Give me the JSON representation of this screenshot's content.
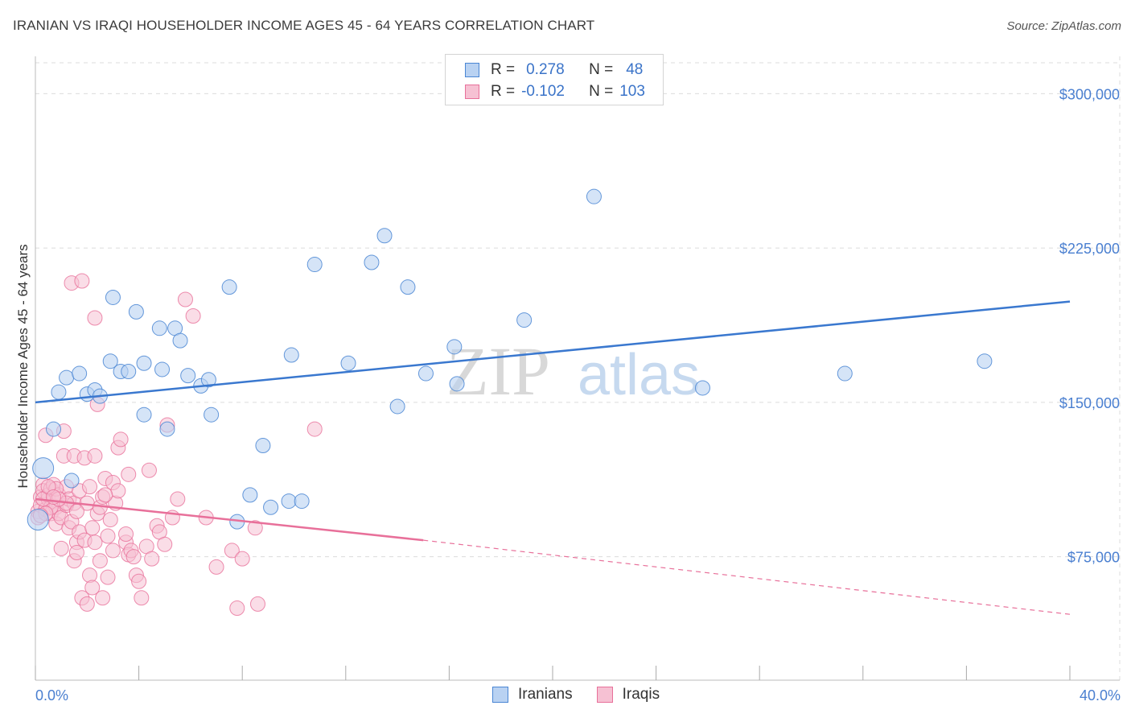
{
  "title": "IRANIAN VS IRAQI HOUSEHOLDER INCOME AGES 45 - 64 YEARS CORRELATION CHART",
  "source": "Source: ZipAtlas.com",
  "legend": {
    "rows": [
      {
        "r_label": "R =",
        "r_value": "0.278",
        "n_label": "N =",
        "n_value": "48"
      },
      {
        "r_label": "R =",
        "r_value": "-0.102",
        "n_label": "N =",
        "n_value": "103"
      }
    ]
  },
  "bottom_legend": [
    "Iranians",
    "Iraqis"
  ],
  "watermark": {
    "zip": "ZIP",
    "atlas": "atlas"
  },
  "colors": {
    "blue": "#4a86d4",
    "blue_fill": "#b9d2f2",
    "pink": "#e8709a",
    "pink_fill": "#f6c1d3",
    "label_blue": "#4a7fd0",
    "grid": "#dcdcdc"
  },
  "chart_data": {
    "type": "scatter",
    "title": "IRANIAN VS IRAQI HOUSEHOLDER INCOME AGES 45 - 64 YEARS CORRELATION CHART",
    "xlabel": "",
    "ylabel": "Householder Income Ages 45 - 64 years",
    "xlim": [
      0,
      40
    ],
    "ylim": [
      15000,
      315000
    ],
    "x_tick_labels": [
      "0.0%",
      "40.0%"
    ],
    "y_ticks": [
      75000,
      150000,
      225000,
      300000
    ],
    "y_tick_labels": [
      "$75,000",
      "$150,000",
      "$225,000",
      "$300,000"
    ],
    "series": [
      {
        "name": "Iranians",
        "color": "#4a86d4",
        "trend": {
          "x": [
            0,
            40
          ],
          "y": [
            150000,
            199000
          ]
        },
        "points": [
          [
            0.1,
            93000
          ],
          [
            0.3,
            118000
          ],
          [
            0.7,
            137000
          ],
          [
            0.9,
            155000
          ],
          [
            1.2,
            162000
          ],
          [
            1.4,
            112000
          ],
          [
            1.7,
            164000
          ],
          [
            2.0,
            154000
          ],
          [
            2.3,
            156000
          ],
          [
            2.5,
            153000
          ],
          [
            2.9,
            170000
          ],
          [
            3.0,
            201000
          ],
          [
            3.3,
            165000
          ],
          [
            3.6,
            165000
          ],
          [
            3.9,
            194000
          ],
          [
            4.2,
            169000
          ],
          [
            4.2,
            144000
          ],
          [
            4.8,
            186000
          ],
          [
            4.9,
            166000
          ],
          [
            5.1,
            137000
          ],
          [
            5.4,
            186000
          ],
          [
            5.6,
            180000
          ],
          [
            5.9,
            163000
          ],
          [
            6.4,
            158000
          ],
          [
            6.7,
            161000
          ],
          [
            6.8,
            144000
          ],
          [
            7.5,
            206000
          ],
          [
            7.8,
            92000
          ],
          [
            8.3,
            105000
          ],
          [
            8.8,
            129000
          ],
          [
            9.1,
            99000
          ],
          [
            9.9,
            173000
          ],
          [
            9.8,
            102000
          ],
          [
            10.3,
            102000
          ],
          [
            10.8,
            217000
          ],
          [
            12.1,
            169000
          ],
          [
            13.0,
            218000
          ],
          [
            13.5,
            231000
          ],
          [
            14.0,
            148000
          ],
          [
            14.4,
            206000
          ],
          [
            15.1,
            164000
          ],
          [
            16.2,
            177000
          ],
          [
            16.3,
            159000
          ],
          [
            18.9,
            190000
          ],
          [
            21.6,
            250000
          ],
          [
            25.8,
            157000
          ],
          [
            31.3,
            164000
          ],
          [
            36.7,
            170000
          ]
        ]
      },
      {
        "name": "Iraqis",
        "color": "#e8709a",
        "trend": {
          "x": [
            0,
            15
          ],
          "y": [
            103000,
            83000
          ],
          "x_dashed": [
            15,
            40
          ],
          "y_dashed": [
            83000,
            47000
          ]
        },
        "points": [
          [
            0.1,
            97000
          ],
          [
            0.1,
            94000
          ],
          [
            0.2,
            104000
          ],
          [
            0.2,
            100000
          ],
          [
            0.3,
            110000
          ],
          [
            0.3,
            107000
          ],
          [
            0.4,
            134000
          ],
          [
            0.4,
            98000
          ],
          [
            0.5,
            103000
          ],
          [
            0.5,
            105000
          ],
          [
            0.6,
            96000
          ],
          [
            0.6,
            108000
          ],
          [
            0.7,
            102000
          ],
          [
            0.7,
            110000
          ],
          [
            0.8,
            99000
          ],
          [
            0.8,
            91000
          ],
          [
            0.9,
            96000
          ],
          [
            0.9,
            105000
          ],
          [
            1.0,
            79000
          ],
          [
            1.0,
            94000
          ],
          [
            1.1,
            136000
          ],
          [
            1.1,
            124000
          ],
          [
            1.2,
            109000
          ],
          [
            1.2,
            100000
          ],
          [
            1.3,
            89000
          ],
          [
            1.3,
            103000
          ],
          [
            1.4,
            92000
          ],
          [
            1.5,
            124000
          ],
          [
            1.5,
            101000
          ],
          [
            1.5,
            73000
          ],
          [
            1.6,
            82000
          ],
          [
            1.6,
            77000
          ],
          [
            1.7,
            107000
          ],
          [
            1.7,
            87000
          ],
          [
            1.8,
            55000
          ],
          [
            1.9,
            83000
          ],
          [
            1.9,
            123000
          ],
          [
            2.0,
            52000
          ],
          [
            2.0,
            101000
          ],
          [
            2.1,
            109000
          ],
          [
            2.1,
            66000
          ],
          [
            2.2,
            60000
          ],
          [
            2.2,
            89000
          ],
          [
            2.3,
            82000
          ],
          [
            2.3,
            124000
          ],
          [
            2.4,
            149000
          ],
          [
            2.4,
            96000
          ],
          [
            2.5,
            99000
          ],
          [
            2.5,
            73000
          ],
          [
            2.6,
            55000
          ],
          [
            2.6,
            104000
          ],
          [
            2.7,
            113000
          ],
          [
            2.8,
            85000
          ],
          [
            2.8,
            65000
          ],
          [
            2.9,
            93000
          ],
          [
            3.0,
            111000
          ],
          [
            3.0,
            78000
          ],
          [
            3.1,
            101000
          ],
          [
            3.2,
            128000
          ],
          [
            3.2,
            107000
          ],
          [
            3.3,
            132000
          ],
          [
            3.5,
            82000
          ],
          [
            3.5,
            86000
          ],
          [
            3.6,
            76000
          ],
          [
            3.6,
            115000
          ],
          [
            3.7,
            78000
          ],
          [
            3.8,
            75000
          ],
          [
            3.9,
            66000
          ],
          [
            4.0,
            63000
          ],
          [
            4.1,
            55000
          ],
          [
            4.3,
            80000
          ],
          [
            4.4,
            117000
          ],
          [
            4.5,
            74000
          ],
          [
            4.7,
            90000
          ],
          [
            4.8,
            87000
          ],
          [
            5.0,
            81000
          ],
          [
            5.1,
            139000
          ],
          [
            5.3,
            94000
          ],
          [
            5.5,
            103000
          ],
          [
            5.8,
            200000
          ],
          [
            6.1,
            192000
          ],
          [
            6.6,
            94000
          ],
          [
            7.0,
            70000
          ],
          [
            7.6,
            78000
          ],
          [
            7.8,
            50000
          ],
          [
            8.0,
            74000
          ],
          [
            8.5,
            89000
          ],
          [
            8.6,
            52000
          ],
          [
            10.8,
            137000
          ],
          [
            2.3,
            191000
          ],
          [
            1.4,
            208000
          ],
          [
            1.8,
            209000
          ],
          [
            0.6,
            99000
          ],
          [
            0.4,
            96000
          ],
          [
            0.3,
            103000
          ],
          [
            0.8,
            108000
          ],
          [
            1.2,
            101000
          ],
          [
            0.2,
            95000
          ],
          [
            0.5,
            109000
          ],
          [
            0.9,
            103000
          ],
          [
            1.6,
            97000
          ],
          [
            2.7,
            105000
          ],
          [
            0.7,
            104000
          ]
        ]
      }
    ]
  }
}
